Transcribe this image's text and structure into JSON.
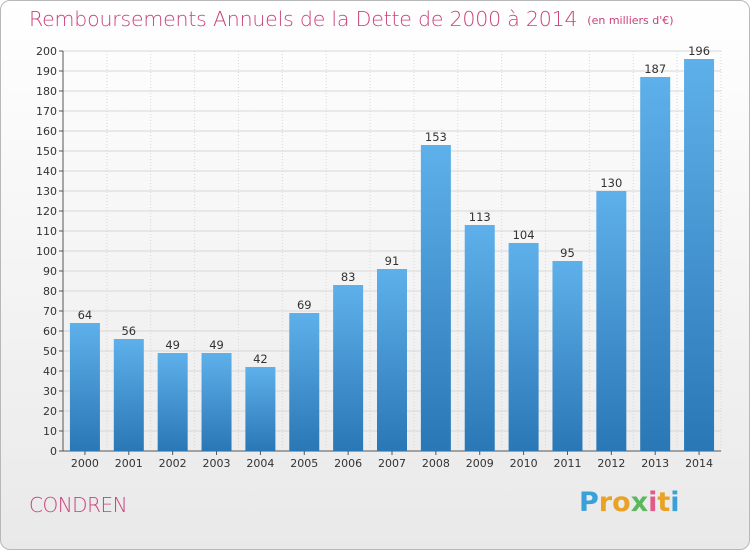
{
  "header": {
    "title": "Remboursements Annuels de la Dette de 2000 à 2014",
    "unit": "(en milliers d'€)"
  },
  "footer": {
    "commune": "CONDREN",
    "brand": {
      "letters": [
        "P",
        "r",
        "o",
        "x",
        "i",
        "t",
        "i"
      ],
      "colors": [
        "#3aa0d8",
        "#e8a326",
        "#e8a326",
        "#5cb85c",
        "#e05a8a",
        "#e8a326",
        "#3aa0d8"
      ],
      "text": "Proxiti"
    }
  },
  "colors": {
    "title": "#c8417a",
    "bar_light": "#5dade8",
    "bar_dark": "#2a78b8",
    "grid": "#d7d7d7"
  },
  "chart_data": {
    "type": "bar",
    "title": "Remboursements Annuels de la Dette de 2000 à 2014",
    "xlabel": "",
    "ylabel": "",
    "categories": [
      "2000",
      "2001",
      "2002",
      "2003",
      "2004",
      "2005",
      "2006",
      "2007",
      "2008",
      "2009",
      "2010",
      "2011",
      "2012",
      "2013",
      "2014"
    ],
    "values": [
      64,
      56,
      49,
      49,
      42,
      69,
      83,
      91,
      153,
      113,
      104,
      95,
      130,
      187,
      196
    ],
    "ylim": [
      0,
      200
    ],
    "yticks": [
      0,
      10,
      20,
      30,
      40,
      50,
      60,
      70,
      80,
      90,
      100,
      110,
      120,
      130,
      140,
      150,
      160,
      170,
      180,
      190,
      200
    ],
    "grid": true,
    "data_labels": true
  }
}
